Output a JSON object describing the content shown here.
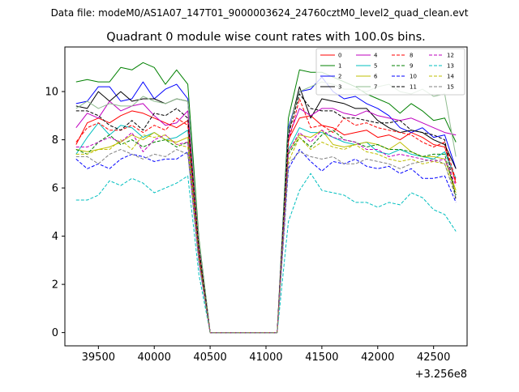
{
  "chart_data": {
    "type": "line",
    "suptitle": "Data file: modeM0/AS1A07_147T01_9000003624_24760cztM0_level2_quad_clean.evt",
    "title": "Quadrant 0 module wise count rates with 100.0s bins.",
    "xlabel": "",
    "ylabel": "",
    "x_offset_label": "+3.256e8",
    "xlim": [
      39200,
      42800
    ],
    "ylim": [
      -0.55,
      11.85
    ],
    "xticks": [
      39500,
      40000,
      40500,
      41000,
      41500,
      42000,
      42500
    ],
    "yticks": [
      0,
      2,
      4,
      6,
      8,
      10
    ],
    "legend_location": "upper-right",
    "legend_columns": 4,
    "x": [
      39300,
      39400,
      39500,
      39600,
      39700,
      39800,
      39900,
      40000,
      40100,
      40200,
      40300,
      40400,
      40500,
      40600,
      40700,
      40800,
      40900,
      41000,
      41100,
      41200,
      41300,
      41400,
      41500,
      41600,
      41700,
      41800,
      41900,
      42000,
      42100,
      42200,
      42300,
      42400,
      42500,
      42600,
      42700
    ],
    "series": [
      {
        "name": "0",
        "color": "#ff0000",
        "dash": "solid",
        "values": [
          7.8,
          8.7,
          8.9,
          8.7,
          9.0,
          9.2,
          9.1,
          8.9,
          8.7,
          8.5,
          8.8,
          3.3,
          0.0,
          0.0,
          0.0,
          0.0,
          0.0,
          0.0,
          0.0,
          8.0,
          8.9,
          9.0,
          8.6,
          8.5,
          8.2,
          8.3,
          8.4,
          8.1,
          8.2,
          8.0,
          8.3,
          8.1,
          7.8,
          7.7,
          6.2
        ]
      },
      {
        "name": "1",
        "color": "#008000",
        "dash": "solid",
        "values": [
          10.4,
          10.5,
          10.4,
          10.4,
          11.0,
          10.9,
          11.2,
          11.0,
          10.3,
          10.9,
          10.3,
          3.9,
          0.0,
          0.0,
          0.0,
          0.0,
          0.0,
          0.0,
          0.0,
          8.9,
          10.9,
          10.8,
          10.8,
          10.6,
          10.4,
          10.2,
          9.9,
          9.7,
          9.5,
          9.1,
          9.5,
          9.2,
          8.8,
          8.9,
          7.9
        ]
      },
      {
        "name": "2",
        "color": "#0000ff",
        "dash": "solid",
        "values": [
          9.5,
          9.6,
          10.2,
          10.2,
          9.6,
          9.7,
          10.4,
          9.7,
          10.1,
          10.3,
          9.7,
          3.7,
          0.0,
          0.0,
          0.0,
          0.0,
          0.0,
          0.0,
          0.0,
          8.5,
          10.0,
          10.1,
          10.6,
          10.0,
          9.7,
          9.8,
          9.5,
          9.3,
          9.0,
          8.5,
          8.3,
          8.5,
          8.1,
          8.2,
          6.8
        ]
      },
      {
        "name": "3",
        "color": "#000000",
        "dash": "solid",
        "values": [
          9.4,
          9.3,
          10.0,
          9.6,
          10.0,
          9.6,
          9.7,
          9.7,
          9.5,
          9.7,
          9.6,
          3.8,
          0.0,
          0.0,
          0.0,
          0.0,
          0.0,
          0.0,
          0.0,
          8.3,
          10.2,
          8.9,
          9.7,
          9.6,
          9.5,
          9.3,
          9.3,
          8.8,
          8.5,
          8.3,
          8.4,
          8.3,
          8.0,
          7.8,
          6.8
        ]
      },
      {
        "name": "4",
        "color": "#bf00bf",
        "dash": "solid",
        "values": [
          8.5,
          9.1,
          8.9,
          9.6,
          9.2,
          9.4,
          9.5,
          9.0,
          8.6,
          8.7,
          9.2,
          3.6,
          0.0,
          0.0,
          0.0,
          0.0,
          0.0,
          0.0,
          0.0,
          8.1,
          9.3,
          9.0,
          9.3,
          9.3,
          9.1,
          9.0,
          9.2,
          9.0,
          8.9,
          8.8,
          8.9,
          8.7,
          8.5,
          8.3,
          8.2
        ]
      },
      {
        "name": "5",
        "color": "#00bfbf",
        "dash": "solid",
        "values": [
          7.4,
          8.1,
          8.7,
          8.2,
          8.6,
          8.5,
          8.1,
          8.3,
          8.0,
          8.1,
          8.4,
          3.2,
          0.0,
          0.0,
          0.0,
          0.0,
          0.0,
          0.0,
          0.0,
          7.6,
          8.5,
          8.3,
          8.3,
          8.1,
          7.9,
          7.8,
          7.9,
          7.5,
          7.4,
          7.6,
          7.4,
          7.3,
          7.2,
          7.5,
          6.4
        ]
      },
      {
        "name": "6",
        "color": "#bfbf00",
        "dash": "solid",
        "values": [
          7.6,
          7.5,
          7.6,
          7.7,
          7.9,
          8.2,
          8.0,
          8.3,
          8.0,
          7.9,
          8.1,
          3.0,
          0.0,
          0.0,
          0.0,
          0.0,
          0.0,
          0.0,
          0.0,
          7.5,
          8.2,
          8.1,
          8.4,
          7.8,
          7.7,
          7.8,
          7.9,
          7.8,
          7.6,
          7.9,
          7.5,
          7.3,
          7.3,
          7.2,
          5.9
        ]
      },
      {
        "name": "7",
        "color": "#8fbc8f",
        "dash": "solid",
        "values": [
          9.3,
          9.6,
          9.3,
          9.5,
          9.4,
          9.4,
          9.8,
          9.6,
          9.5,
          9.7,
          9.6,
          3.8,
          0.0,
          0.0,
          0.0,
          0.0,
          0.0,
          0.0,
          0.0,
          8.4,
          10.0,
          10.2,
          10.4,
          10.3,
          10.1,
          10.1,
          10.0,
          10.2,
          10.3,
          10.0,
          9.9,
          10.1,
          9.8,
          9.9,
          7.3
        ]
      },
      {
        "name": "8",
        "color": "#ff0000",
        "dash": "dashed",
        "values": [
          7.9,
          8.5,
          8.7,
          8.4,
          8.4,
          8.6,
          8.3,
          8.6,
          8.4,
          8.9,
          8.6,
          3.3,
          0.0,
          0.0,
          0.0,
          0.0,
          0.0,
          0.0,
          0.0,
          7.9,
          9.7,
          8.5,
          8.6,
          8.3,
          8.9,
          8.6,
          8.7,
          8.5,
          8.4,
          8.3,
          8.2,
          7.9,
          7.7,
          7.9,
          6.3
        ]
      },
      {
        "name": "9",
        "color": "#008000",
        "dash": "dashed",
        "values": [
          7.6,
          7.4,
          7.9,
          8.2,
          7.8,
          8.0,
          7.7,
          7.9,
          8.0,
          7.7,
          7.9,
          3.1,
          0.0,
          0.0,
          0.0,
          0.0,
          0.0,
          0.0,
          0.0,
          7.4,
          8.1,
          7.7,
          8.2,
          8.4,
          8.0,
          7.9,
          7.7,
          7.8,
          7.6,
          7.6,
          7.5,
          7.3,
          7.4,
          7.4,
          5.7
        ]
      },
      {
        "name": "10",
        "color": "#0000ff",
        "dash": "dashed",
        "values": [
          7.2,
          6.8,
          7.0,
          6.8,
          7.2,
          7.4,
          7.3,
          7.1,
          7.2,
          7.2,
          7.5,
          2.9,
          0.0,
          0.0,
          0.0,
          0.0,
          0.0,
          0.0,
          0.0,
          6.8,
          7.6,
          7.1,
          6.7,
          7.1,
          7.0,
          7.2,
          6.9,
          6.8,
          6.9,
          6.6,
          6.8,
          6.4,
          6.4,
          6.5,
          5.4
        ]
      },
      {
        "name": "11",
        "color": "#000000",
        "dash": "dashed",
        "values": [
          9.2,
          9.2,
          9.0,
          8.6,
          8.4,
          8.8,
          8.4,
          9.1,
          9.0,
          9.3,
          8.9,
          3.5,
          0.0,
          0.0,
          0.0,
          0.0,
          0.0,
          0.0,
          0.0,
          8.2,
          9.9,
          9.3,
          9.2,
          9.2,
          8.9,
          8.9,
          8.8,
          8.7,
          8.7,
          8.8,
          8.4,
          8.3,
          8.2,
          8.0,
          5.5
        ]
      },
      {
        "name": "12",
        "color": "#bf00bf",
        "dash": "dashed",
        "values": [
          7.7,
          7.7,
          7.9,
          8.1,
          7.9,
          8.3,
          7.5,
          8.0,
          8.2,
          7.8,
          7.9,
          3.0,
          0.0,
          0.0,
          0.0,
          0.0,
          0.0,
          0.0,
          0.0,
          7.5,
          8.3,
          7.9,
          8.4,
          8.1,
          8.0,
          7.9,
          7.6,
          7.6,
          7.3,
          7.4,
          7.3,
          7.2,
          7.1,
          7.2,
          6.1
        ]
      },
      {
        "name": "13",
        "color": "#00bfbf",
        "dash": "dashed",
        "values": [
          5.5,
          5.5,
          5.7,
          6.3,
          6.1,
          6.4,
          6.2,
          5.8,
          6.0,
          6.2,
          6.5,
          2.4,
          0.0,
          0.0,
          0.0,
          0.0,
          0.0,
          0.0,
          0.0,
          4.6,
          5.9,
          6.6,
          5.9,
          5.8,
          5.7,
          5.4,
          5.4,
          5.2,
          5.4,
          5.3,
          5.8,
          5.6,
          5.1,
          4.9,
          4.2
        ]
      },
      {
        "name": "14",
        "color": "#bfbf00",
        "dash": "dashed",
        "values": [
          7.4,
          7.4,
          7.6,
          7.6,
          8.0,
          7.6,
          8.2,
          8.1,
          8.2,
          7.8,
          7.7,
          3.0,
          0.0,
          0.0,
          0.0,
          0.0,
          0.0,
          0.0,
          0.0,
          7.1,
          8.1,
          7.6,
          7.9,
          7.7,
          7.6,
          7.8,
          7.5,
          7.4,
          7.2,
          7.1,
          7.2,
          7.0,
          7.1,
          7.0,
          5.8
        ]
      },
      {
        "name": "15",
        "color": "#808080",
        "dash": "dashed",
        "values": [
          7.3,
          7.3,
          7.0,
          7.4,
          7.6,
          7.4,
          7.2,
          7.4,
          7.3,
          7.6,
          7.4,
          2.9,
          0.0,
          0.0,
          0.0,
          0.0,
          0.0,
          0.0,
          0.0,
          7.0,
          7.5,
          7.3,
          7.2,
          7.3,
          7.0,
          7.0,
          7.2,
          7.1,
          7.0,
          6.8,
          7.0,
          7.1,
          7.2,
          7.0,
          5.6
        ]
      }
    ]
  }
}
